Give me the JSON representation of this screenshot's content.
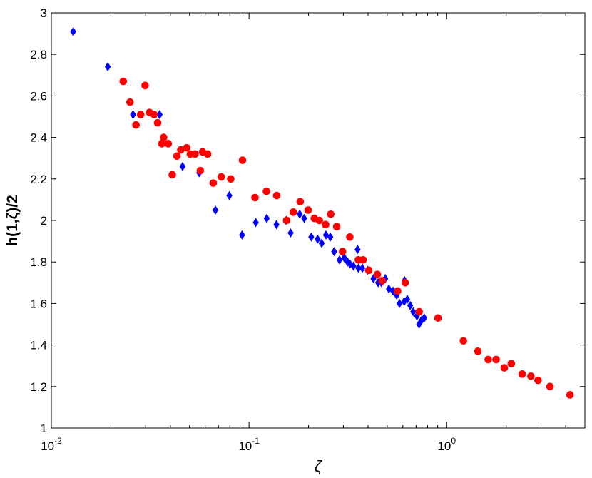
{
  "chart_data": {
    "type": "scatter",
    "title": "",
    "xlabel": "ζ",
    "ylabel": "h(1,ζ)/2",
    "xscale": "log",
    "xlim": [
      0.01,
      5
    ],
    "ylim": [
      1,
      3
    ],
    "grid": false,
    "legend": "none",
    "x_ticks": [
      {
        "value": 0.01,
        "base": "10",
        "exp": "-2"
      },
      {
        "value": 0.1,
        "base": "10",
        "exp": "-1"
      },
      {
        "value": 1,
        "base": "10",
        "exp": "0"
      }
    ],
    "y_ticks": [
      {
        "value": 1,
        "label": "1"
      },
      {
        "value": 1.2,
        "label": "1.2"
      },
      {
        "value": 1.4,
        "label": "1.4"
      },
      {
        "value": 1.6,
        "label": "1.6"
      },
      {
        "value": 1.8,
        "label": "1.8"
      },
      {
        "value": 2,
        "label": "2"
      },
      {
        "value": 2.2,
        "label": "2.2"
      },
      {
        "value": 2.4,
        "label": "2.4"
      },
      {
        "value": 2.6,
        "label": "2.6"
      },
      {
        "value": 2.8,
        "label": "2.8"
      },
      {
        "value": 3,
        "label": "3"
      }
    ],
    "series": [
      {
        "marker": "diamond",
        "color": "#0000ff",
        "points": [
          [
            0.0129,
            2.91
          ],
          [
            0.0193,
            2.74
          ],
          [
            0.0259,
            2.51
          ],
          [
            0.0353,
            2.51
          ],
          [
            0.0461,
            2.26
          ],
          [
            0.056,
            2.23
          ],
          [
            0.0676,
            2.05
          ],
          [
            0.0795,
            2.12
          ],
          [
            0.0922,
            1.93
          ],
          [
            0.1082,
            1.99
          ],
          [
            0.1229,
            2.01
          ],
          [
            0.1376,
            1.98
          ],
          [
            0.154,
            2.0
          ],
          [
            0.1624,
            1.94
          ],
          [
            0.1805,
            2.03
          ],
          [
            0.1902,
            2.01
          ],
          [
            0.2065,
            1.92
          ],
          [
            0.2223,
            1.91
          ],
          [
            0.2332,
            1.89
          ],
          [
            0.245,
            1.93
          ],
          [
            0.2578,
            1.92
          ],
          [
            0.2695,
            1.85
          ],
          [
            0.287,
            1.81
          ],
          [
            0.3032,
            1.82
          ],
          [
            0.3153,
            1.8
          ],
          [
            0.3243,
            1.79
          ],
          [
            0.3376,
            1.78
          ],
          [
            0.3542,
            1.86
          ],
          [
            0.3576,
            1.77
          ],
          [
            0.3745,
            1.77
          ],
          [
            0.3982,
            1.76
          ],
          [
            0.4259,
            1.72
          ],
          [
            0.4498,
            1.7
          ],
          [
            0.4675,
            1.7
          ],
          [
            0.4888,
            1.72
          ],
          [
            0.5099,
            1.67
          ],
          [
            0.5356,
            1.66
          ],
          [
            0.5587,
            1.64
          ],
          [
            0.5771,
            1.6
          ],
          [
            0.6095,
            1.61
          ],
          [
            0.6314,
            1.62
          ],
          [
            0.6536,
            1.59
          ],
          [
            0.6771,
            1.56
          ],
          [
            0.7066,
            1.54
          ],
          [
            0.7251,
            1.5
          ],
          [
            0.7472,
            1.52
          ],
          [
            0.7694,
            1.53
          ],
          [
            0.6121,
            1.71
          ]
        ]
      },
      {
        "marker": "circle",
        "color": "#ff0000",
        "points": [
          [
            0.0231,
            2.67
          ],
          [
            0.025,
            2.57
          ],
          [
            0.0268,
            2.46
          ],
          [
            0.0283,
            2.51
          ],
          [
            0.0298,
            2.65
          ],
          [
            0.0314,
            2.52
          ],
          [
            0.0331,
            2.51
          ],
          [
            0.0345,
            2.47
          ],
          [
            0.0362,
            2.37
          ],
          [
            0.037,
            2.4
          ],
          [
            0.039,
            2.37
          ],
          [
            0.0409,
            2.22
          ],
          [
            0.0432,
            2.31
          ],
          [
            0.0452,
            2.34
          ],
          [
            0.0484,
            2.35
          ],
          [
            0.0505,
            2.32
          ],
          [
            0.0533,
            2.32
          ],
          [
            0.0567,
            2.24
          ],
          [
            0.0582,
            2.33
          ],
          [
            0.0617,
            2.32
          ],
          [
            0.0659,
            2.18
          ],
          [
            0.0724,
            2.21
          ],
          [
            0.0808,
            2.2
          ],
          [
            0.0927,
            2.29
          ],
          [
            0.1072,
            2.11
          ],
          [
            0.1225,
            2.14
          ],
          [
            0.1381,
            2.12
          ],
          [
            0.155,
            2.0
          ],
          [
            0.1676,
            2.04
          ],
          [
            0.1815,
            2.09
          ],
          [
            0.1991,
            2.05
          ],
          [
            0.2139,
            2.01
          ],
          [
            0.2269,
            2.0
          ],
          [
            0.2441,
            1.98
          ],
          [
            0.259,
            2.03
          ],
          [
            0.2778,
            1.97
          ],
          [
            0.2973,
            1.85
          ],
          [
            0.3236,
            1.92
          ],
          [
            0.3574,
            1.81
          ],
          [
            0.3776,
            1.81
          ],
          [
            0.4036,
            1.76
          ],
          [
            0.4459,
            1.74
          ],
          [
            0.4718,
            1.71
          ],
          [
            0.5646,
            1.66
          ],
          [
            0.6171,
            1.7
          ],
          [
            0.7258,
            1.56
          ],
          [
            0.9038,
            1.53
          ],
          [
            1.2144,
            1.42
          ],
          [
            1.438,
            1.37
          ],
          [
            1.6219,
            1.33
          ],
          [
            1.7786,
            1.33
          ],
          [
            1.9553,
            1.29
          ],
          [
            2.1211,
            1.31
          ],
          [
            2.4095,
            1.26
          ],
          [
            2.6658,
            1.25
          ],
          [
            2.8972,
            1.23
          ],
          [
            3.3323,
            1.2
          ],
          [
            4.2063,
            1.16
          ]
        ]
      }
    ]
  }
}
